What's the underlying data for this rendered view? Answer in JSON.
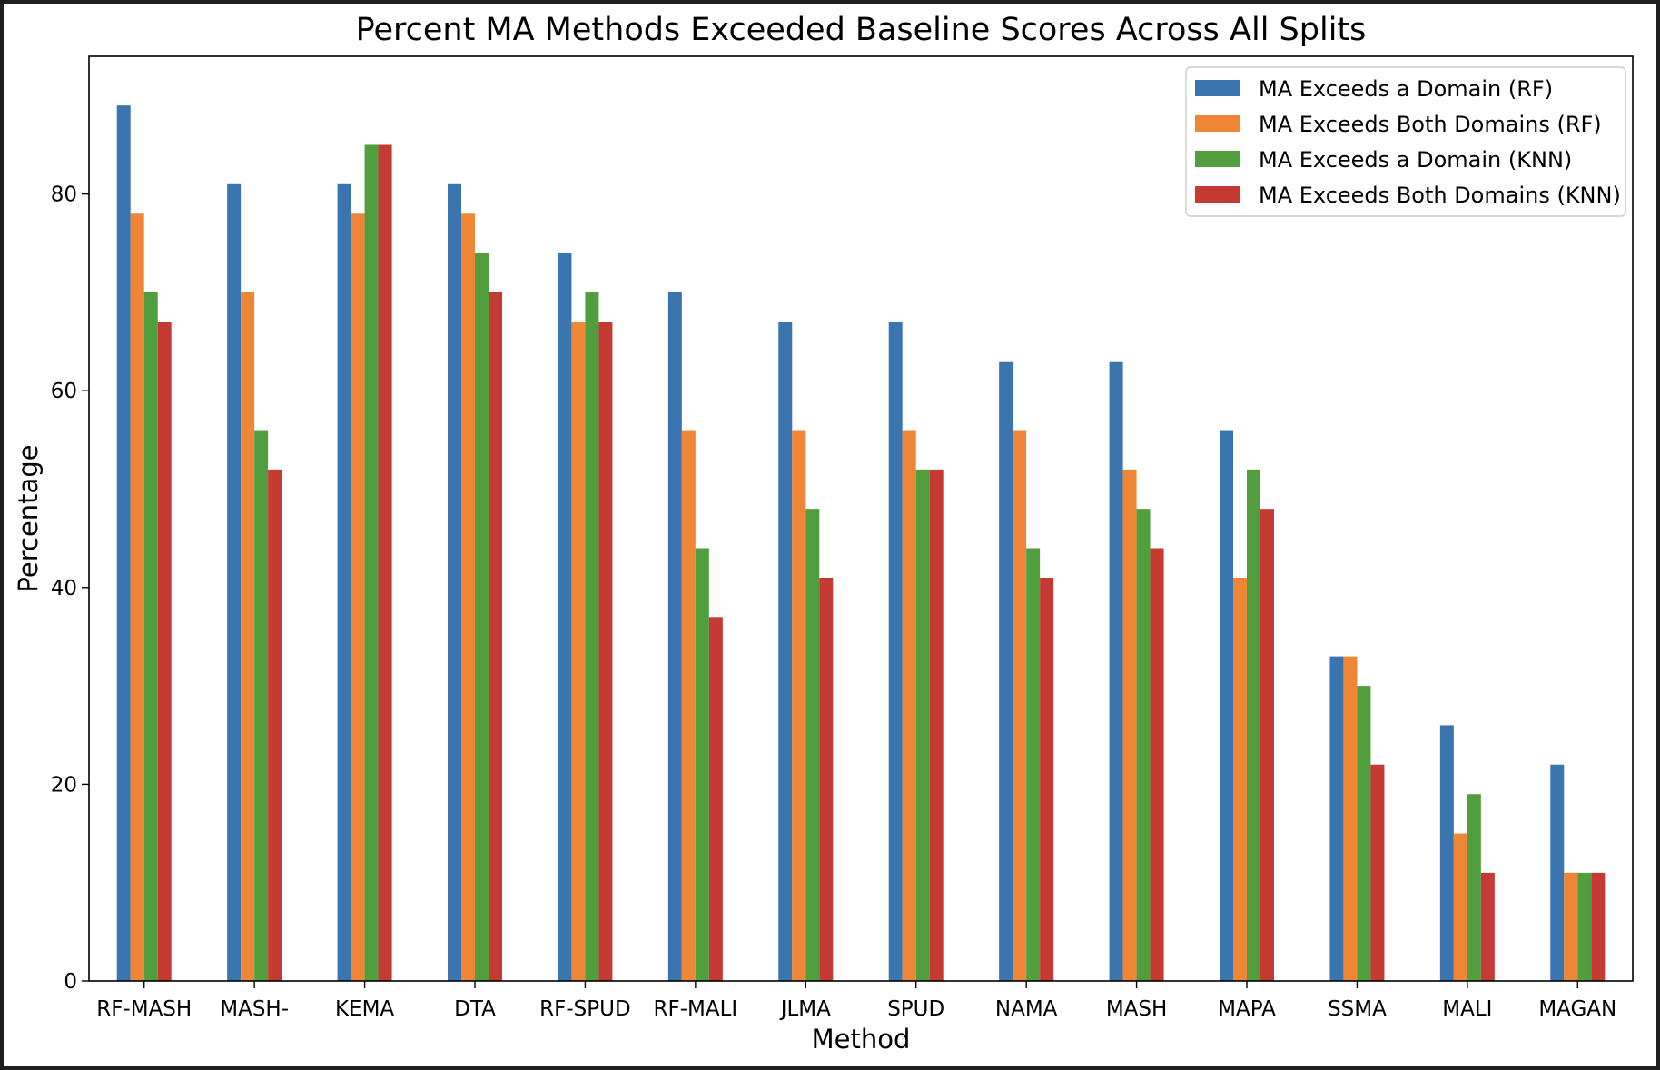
{
  "chart_data": {
    "type": "bar",
    "title": "Percent MA Methods Exceeded Baseline Scores Across All Splits",
    "xlabel": "Method",
    "ylabel": "Percentage",
    "ylim": [
      0,
      94
    ],
    "yticks": [
      0,
      20,
      40,
      60,
      80
    ],
    "grid": false,
    "legend_position": "top-right",
    "categories": [
      "RF-MASH",
      "MASH-",
      "KEMA",
      "DTA",
      "RF-SPUD",
      "RF-MALI",
      "JLMA",
      "SPUD",
      "NAMA",
      "MASH",
      "MAPA",
      "SSMA",
      "MALI",
      "MAGAN"
    ],
    "series": [
      {
        "name": "MA Exceeds a Domain (RF)",
        "color": "#3b75af",
        "values": [
          89,
          81,
          81,
          81,
          74,
          70,
          67,
          67,
          63,
          63,
          56,
          33,
          26,
          22
        ]
      },
      {
        "name": "MA Exceeds Both Domains (RF)",
        "color": "#ef8636",
        "values": [
          78,
          70,
          78,
          78,
          67,
          56,
          56,
          56,
          56,
          52,
          41,
          33,
          15,
          11
        ]
      },
      {
        "name": "MA Exceeds a Domain (KNN)",
        "color": "#519e3e",
        "values": [
          70,
          56,
          85,
          74,
          70,
          44,
          48,
          52,
          44,
          48,
          52,
          30,
          19,
          11
        ]
      },
      {
        "name": "MA Exceeds Both Domains (KNN)",
        "color": "#c53a32",
        "values": [
          67,
          52,
          85,
          70,
          67,
          37,
          41,
          52,
          41,
          44,
          48,
          22,
          11,
          11
        ]
      }
    ]
  }
}
